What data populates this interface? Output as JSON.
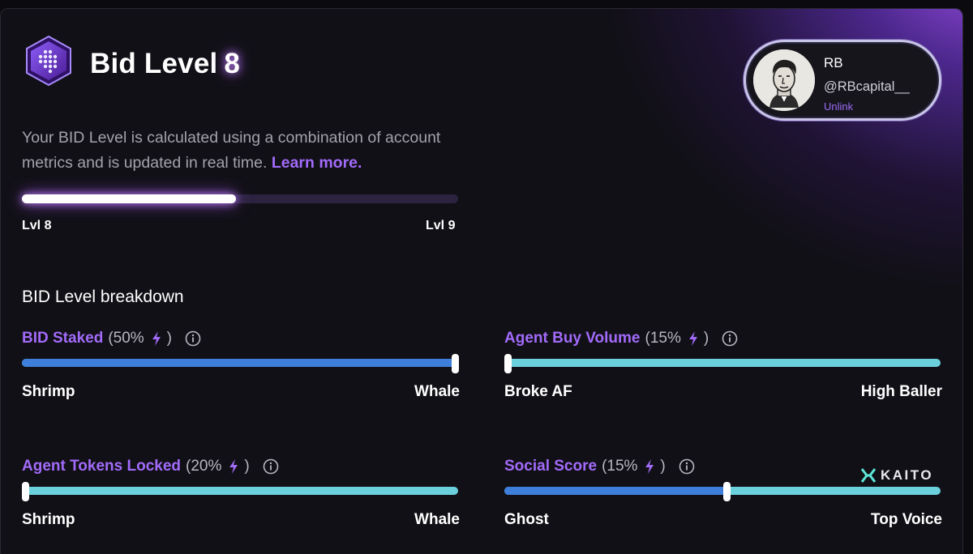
{
  "header": {
    "title": "Bid Level",
    "level": "8",
    "description": "Your BID Level is calculated using a combination of account metrics and is updated in real time.",
    "learn_more": "Learn more."
  },
  "progress": {
    "value": 0.49,
    "from_label": "Lvl 8",
    "to_label": "Lvl 9"
  },
  "profile": {
    "name": "RB",
    "handle": "@RBcapital__",
    "unlink_label": "Unlink",
    "avatar_icon": "portrait-avatar-icon"
  },
  "breakdown": {
    "title": "BID Level breakdown",
    "metrics": [
      {
        "name": "BID Staked",
        "pct": "(50%",
        "close": ")",
        "value": 1.0,
        "min": "Shrimp",
        "max": "Whale"
      },
      {
        "name": "Agent Buy Volume",
        "pct": "(15%",
        "close": ")",
        "value": 0.0,
        "min": "Broke AF",
        "max": "High Baller"
      },
      {
        "name": "Agent Tokens Locked",
        "pct": "(20%",
        "close": ")",
        "value": 0.0,
        "min": "Shrimp",
        "max": "Whale"
      },
      {
        "name": "Social Score",
        "pct": "(15%",
        "close": ")",
        "value": 0.51,
        "min": "Ghost",
        "max": "Top Voice",
        "partner": "KAITO"
      }
    ]
  },
  "colors": {
    "accent": "#a26bfa",
    "fill": "#3e7fdc",
    "track": "#6ad0dc",
    "background": "#111016"
  }
}
